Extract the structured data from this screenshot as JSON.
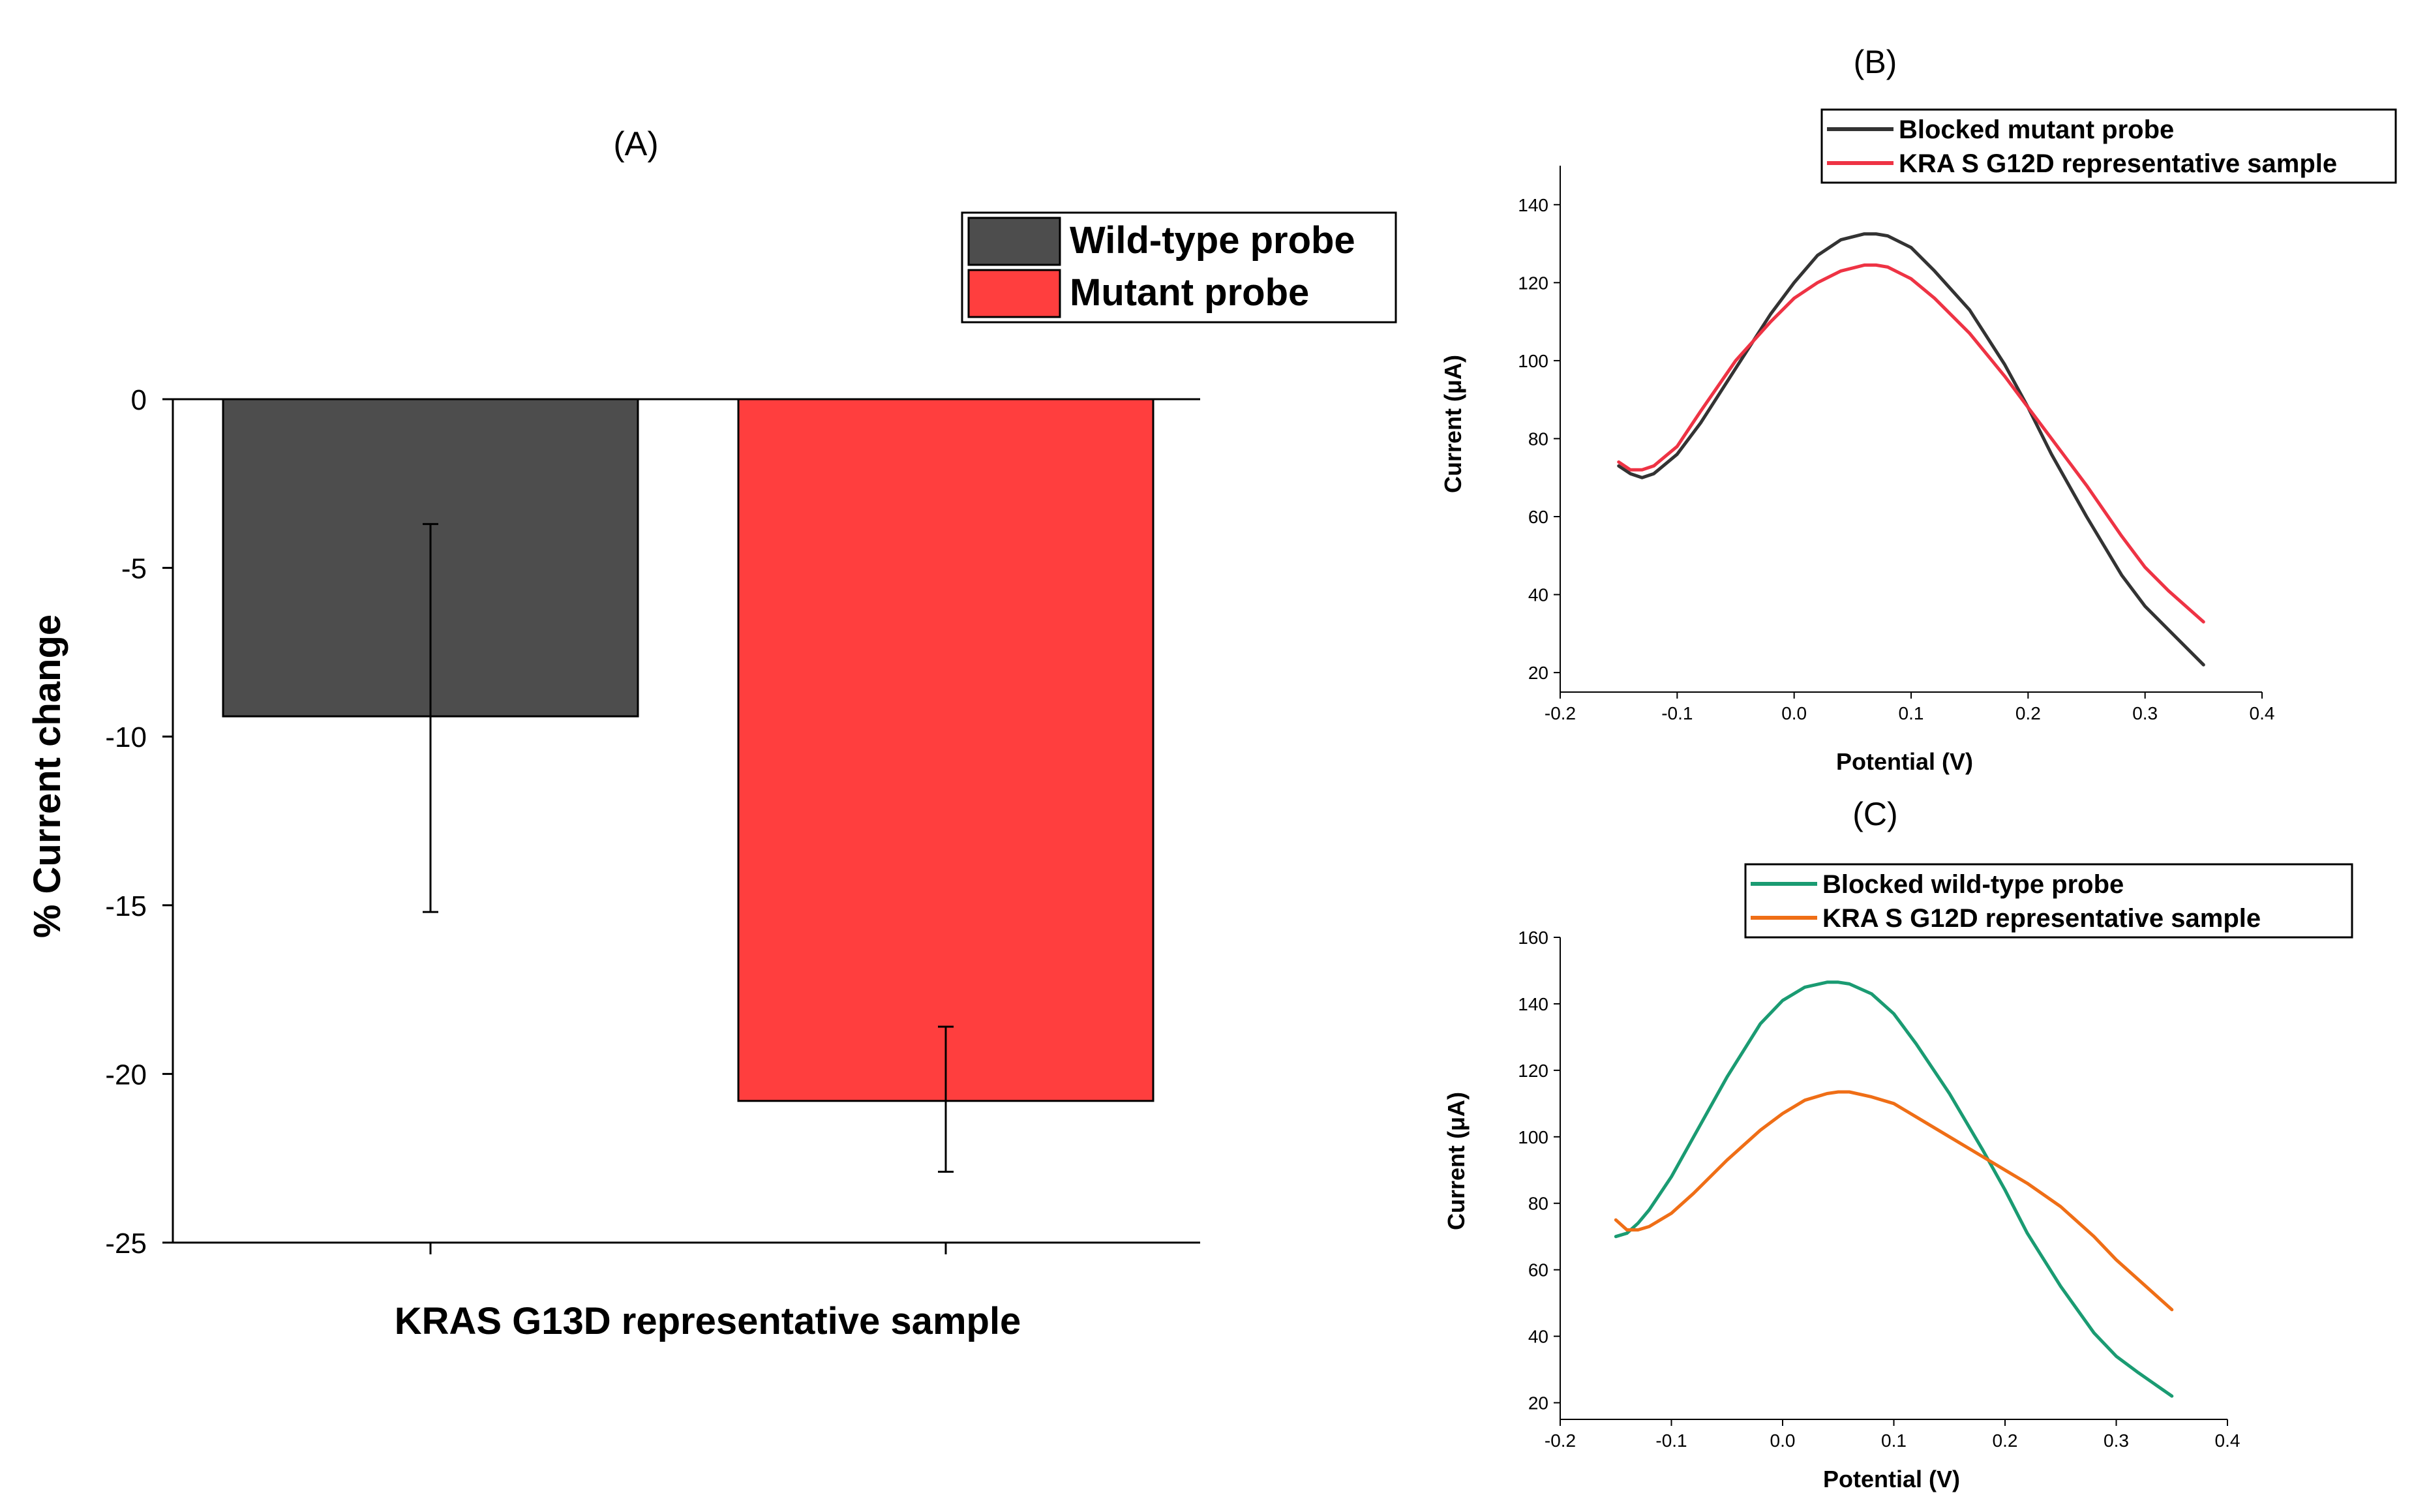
{
  "chart_data": [
    {
      "panel": "(A)",
      "type": "bar",
      "title": "",
      "xlabel": "KRAS G13D representative sample",
      "ylabel": "% Current change",
      "ylim": [
        -25,
        0
      ],
      "yticks": [
        0,
        -5,
        -10,
        -15,
        -20,
        -25
      ],
      "legend_position": "top-right",
      "series": [
        {
          "name": "Wild-type probe",
          "value": -9.4,
          "error_low": -15.2,
          "error_high": -3.7,
          "color": "#4d4d4d"
        },
        {
          "name": "Mutant probe",
          "value": -20.8,
          "error_low": -22.9,
          "error_high": -18.6,
          "color": "#ff3e3e"
        }
      ]
    },
    {
      "panel": "(B)",
      "type": "line",
      "xlabel": "Potential (V)",
      "ylabel": "Current (μA)",
      "xlim": [
        -0.2,
        0.4
      ],
      "ylim": [
        15,
        150
      ],
      "xticks": [
        -0.2,
        -0.1,
        0.0,
        0.1,
        0.2,
        0.3,
        0.4
      ],
      "xtick_labels": [
        "-0.2",
        "-0.1",
        "0.0",
        "0.1",
        "0.2",
        "0.3",
        "0.4"
      ],
      "yticks": [
        20,
        40,
        60,
        80,
        100,
        120,
        140
      ],
      "legend_position": "top-right",
      "series": [
        {
          "name": "Blocked mutant probe",
          "color": "#333333",
          "x": [
            -0.15,
            -0.14,
            -0.13,
            -0.12,
            -0.1,
            -0.08,
            -0.05,
            -0.02,
            0.0,
            0.02,
            0.04,
            0.06,
            0.07,
            0.08,
            0.1,
            0.12,
            0.15,
            0.18,
            0.2,
            0.22,
            0.25,
            0.28,
            0.3,
            0.32,
            0.35
          ],
          "y": [
            73,
            71,
            70,
            71,
            76,
            84,
            98,
            112,
            120,
            127,
            131,
            132.5,
            132.5,
            132,
            129,
            123,
            113,
            99,
            88,
            76,
            60,
            45,
            37,
            31,
            22
          ]
        },
        {
          "name": "KRA S G12D representative sample",
          "color": "#ee3344",
          "x": [
            -0.15,
            -0.14,
            -0.13,
            -0.12,
            -0.1,
            -0.08,
            -0.05,
            -0.02,
            0.0,
            0.02,
            0.04,
            0.06,
            0.07,
            0.08,
            0.1,
            0.12,
            0.15,
            0.18,
            0.2,
            0.22,
            0.25,
            0.28,
            0.3,
            0.32,
            0.35
          ],
          "y": [
            74,
            72,
            72,
            73,
            78,
            87,
            100,
            110,
            116,
            120,
            123,
            124.5,
            124.5,
            124,
            121,
            116,
            107,
            96,
            88,
            80,
            68,
            55,
            47,
            41,
            33
          ]
        }
      ]
    },
    {
      "panel": "(C)",
      "type": "line",
      "xlabel": "Potential (V)",
      "ylabel": "Current (μA)",
      "xlim": [
        -0.2,
        0.4
      ],
      "ylim": [
        15,
        160
      ],
      "xticks": [
        -0.2,
        -0.1,
        0.0,
        0.1,
        0.2,
        0.3,
        0.4
      ],
      "xtick_labels": [
        "-0.2",
        "-0.1",
        "0.0",
        "0.1",
        "0.2",
        "0.3",
        "0.4"
      ],
      "yticks": [
        20,
        40,
        60,
        80,
        100,
        120,
        140,
        160
      ],
      "legend_position": "top-right",
      "series": [
        {
          "name": "Blocked wild-type probe",
          "color": "#1a9b72",
          "x": [
            -0.15,
            -0.14,
            -0.13,
            -0.12,
            -0.1,
            -0.08,
            -0.05,
            -0.02,
            0.0,
            0.02,
            0.04,
            0.05,
            0.06,
            0.08,
            0.1,
            0.12,
            0.15,
            0.18,
            0.2,
            0.22,
            0.25,
            0.28,
            0.3,
            0.32,
            0.35
          ],
          "y": [
            70,
            71,
            74,
            78,
            88,
            100,
            118,
            134,
            141,
            145,
            146.5,
            146.5,
            146,
            143,
            137,
            128,
            113,
            96,
            84,
            71,
            55,
            41,
            34,
            29,
            22
          ]
        },
        {
          "name": "KRA S G12D representative sample",
          "color": "#ef6e16",
          "x": [
            -0.15,
            -0.14,
            -0.13,
            -0.12,
            -0.1,
            -0.08,
            -0.05,
            -0.02,
            0.0,
            0.02,
            0.04,
            0.05,
            0.06,
            0.08,
            0.1,
            0.12,
            0.15,
            0.18,
            0.2,
            0.22,
            0.25,
            0.28,
            0.3,
            0.32,
            0.35
          ],
          "y": [
            75,
            72,
            72,
            73,
            77,
            83,
            93,
            102,
            107,
            111,
            113,
            113.5,
            113.5,
            112,
            110,
            106,
            100,
            94,
            90,
            86,
            79,
            70,
            63,
            57,
            48
          ]
        }
      ]
    }
  ]
}
